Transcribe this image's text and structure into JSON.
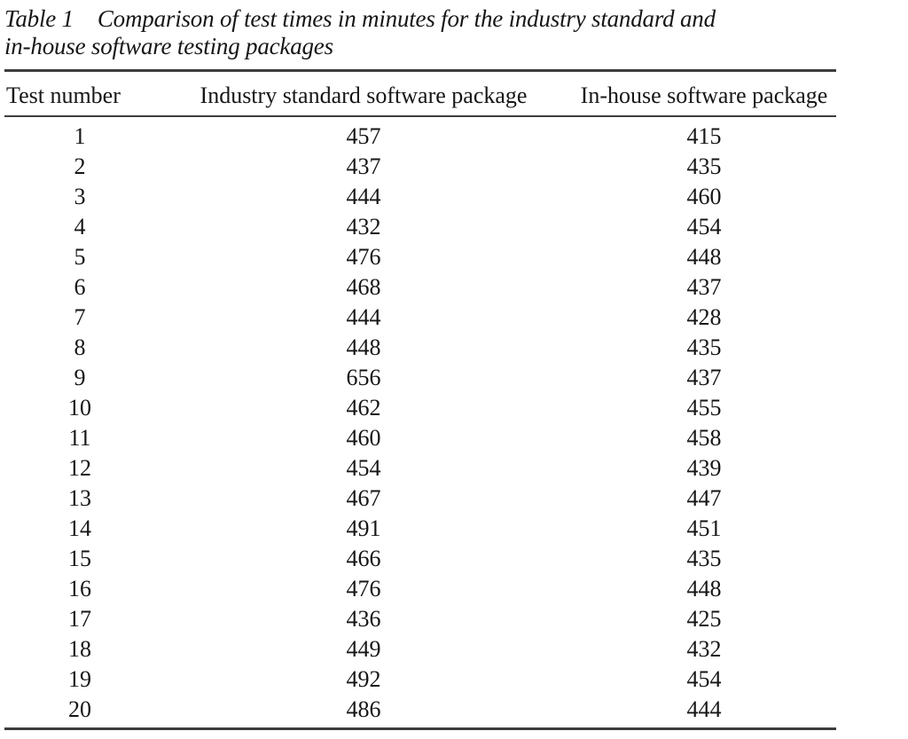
{
  "page": {
    "background": "#ffffff",
    "text_color": "#161616",
    "rule_color": "#3d3d3d"
  },
  "caption": {
    "label": "Table 1",
    "line1": "Comparison of test times in minutes for the industry standard and",
    "line2": "in-house software testing packages"
  },
  "table": {
    "columns": [
      "Test number",
      "Industry standard software package",
      "In-house software package"
    ],
    "rows": [
      [
        "1",
        "457",
        "415"
      ],
      [
        "2",
        "437",
        "435"
      ],
      [
        "3",
        "444",
        "460"
      ],
      [
        "4",
        "432",
        "454"
      ],
      [
        "5",
        "476",
        "448"
      ],
      [
        "6",
        "468",
        "437"
      ],
      [
        "7",
        "444",
        "428"
      ],
      [
        "8",
        "448",
        "435"
      ],
      [
        "9",
        "656",
        "437"
      ],
      [
        "10",
        "462",
        "455"
      ],
      [
        "11",
        "460",
        "458"
      ],
      [
        "12",
        "454",
        "439"
      ],
      [
        "13",
        "467",
        "447"
      ],
      [
        "14",
        "491",
        "451"
      ],
      [
        "15",
        "466",
        "435"
      ],
      [
        "16",
        "476",
        "448"
      ],
      [
        "17",
        "436",
        "425"
      ],
      [
        "18",
        "449",
        "432"
      ],
      [
        "19",
        "492",
        "454"
      ],
      [
        "20",
        "486",
        "444"
      ]
    ]
  }
}
